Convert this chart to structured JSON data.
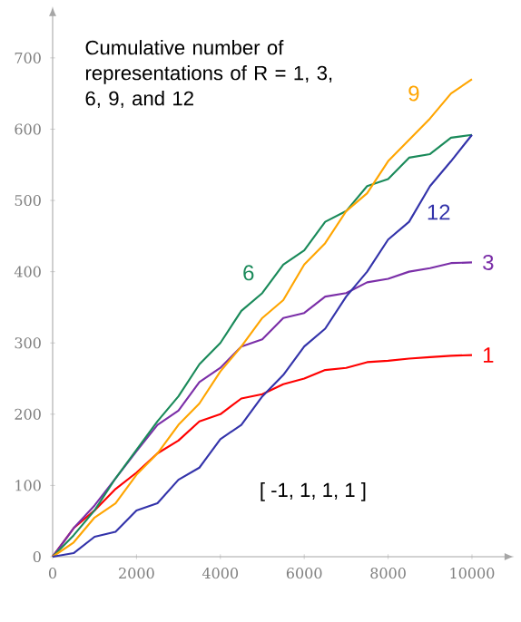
{
  "chart_data": {
    "type": "line",
    "title": "Cumulative number of representations of R = 1, 3, 6, 9, and 12",
    "annotations": [
      "[ -1, 1, 1, 1 ]"
    ],
    "x": [
      0,
      500,
      1000,
      1500,
      2000,
      2500,
      3000,
      3500,
      4000,
      4500,
      5000,
      5500,
      6000,
      6500,
      7000,
      7500,
      8000,
      8500,
      9000,
      9500,
      10000
    ],
    "series": [
      {
        "name": "1",
        "color": "#ff0000",
        "values": [
          0,
          40,
          65,
          95,
          118,
          145,
          163,
          190,
          200,
          222,
          228,
          242,
          250,
          262,
          265,
          273,
          275,
          278,
          280,
          282,
          283
        ]
      },
      {
        "name": "3",
        "color": "#7b2fa8",
        "values": [
          0,
          40,
          72,
          110,
          148,
          185,
          205,
          245,
          265,
          295,
          305,
          335,
          342,
          365,
          370,
          385,
          390,
          400,
          405,
          412,
          413
        ]
      },
      {
        "name": "6",
        "color": "#1a8a5a",
        "values": [
          0,
          30,
          65,
          110,
          150,
          190,
          225,
          270,
          300,
          345,
          370,
          410,
          430,
          470,
          485,
          520,
          530,
          560,
          565,
          588,
          592
        ]
      },
      {
        "name": "9",
        "color": "#ffa500",
        "values": [
          0,
          20,
          55,
          75,
          115,
          145,
          185,
          215,
          260,
          295,
          335,
          360,
          410,
          440,
          485,
          510,
          555,
          585,
          615,
          650,
          670
        ]
      },
      {
        "name": "12",
        "color": "#3333aa",
        "values": [
          0,
          5,
          28,
          35,
          65,
          75,
          108,
          125,
          165,
          185,
          225,
          255,
          295,
          320,
          365,
          400,
          445,
          470,
          520,
          555,
          592
        ]
      }
    ],
    "xlim": [
      0,
      10800
    ],
    "ylim": [
      0,
      760
    ],
    "xticks": [
      0,
      2000,
      4000,
      6000,
      8000,
      10000
    ],
    "yticks": [
      0,
      100,
      200,
      300,
      400,
      500,
      600,
      700
    ],
    "grid": false,
    "legend": false,
    "marker": "none",
    "line_style": "solid"
  }
}
